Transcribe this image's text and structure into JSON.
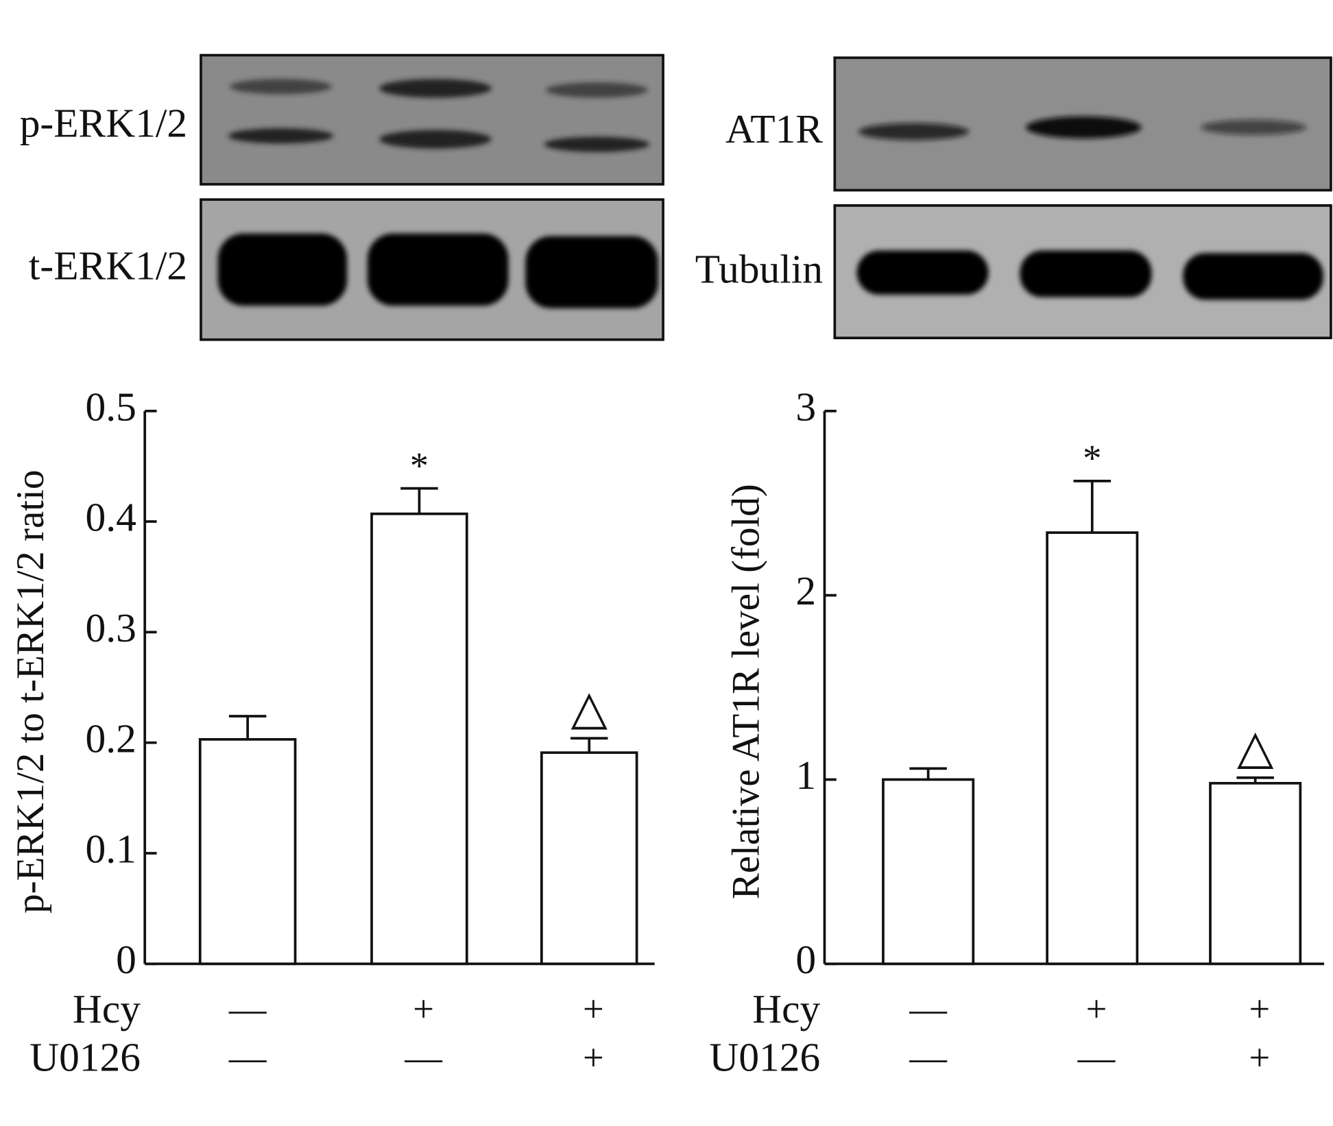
{
  "chart_data": [
    {
      "type": "bar",
      "blot_labels": [
        "p-ERK1/2",
        "t-ERK1/2"
      ],
      "ylabel": "p-ERK1/2 to t-ERK1/2 ratio",
      "values": [
        0.203,
        0.407,
        0.191
      ],
      "errors": [
        0.021,
        0.023,
        0.013
      ],
      "markers": [
        null,
        "*",
        "△"
      ],
      "conditions": [
        {
          "name": "Hcy",
          "labels": [
            "—",
            "+",
            "+"
          ]
        },
        {
          "name": "U0126",
          "labels": [
            "—",
            "—",
            "+"
          ]
        }
      ],
      "ylim": [
        0,
        0.5
      ],
      "yticks": [
        0,
        0.1,
        0.2,
        0.3,
        0.4,
        0.5
      ],
      "color": "#ffffff"
    },
    {
      "type": "bar",
      "blot_labels": [
        "AT1R",
        "Tubulin"
      ],
      "ylabel": "Relative AT1R level (fold)",
      "values": [
        1.0,
        2.34,
        0.98
      ],
      "errors": [
        0.06,
        0.28,
        0.03
      ],
      "markers": [
        null,
        "*",
        "△"
      ],
      "conditions": [
        {
          "name": "Hcy",
          "labels": [
            "—",
            "+",
            "+"
          ]
        },
        {
          "name": "U0126",
          "labels": [
            "—",
            "—",
            "+"
          ]
        }
      ],
      "ylim": [
        0,
        3
      ],
      "yticks": [
        0,
        1,
        2,
        3
      ],
      "color": "#ffffff"
    }
  ]
}
